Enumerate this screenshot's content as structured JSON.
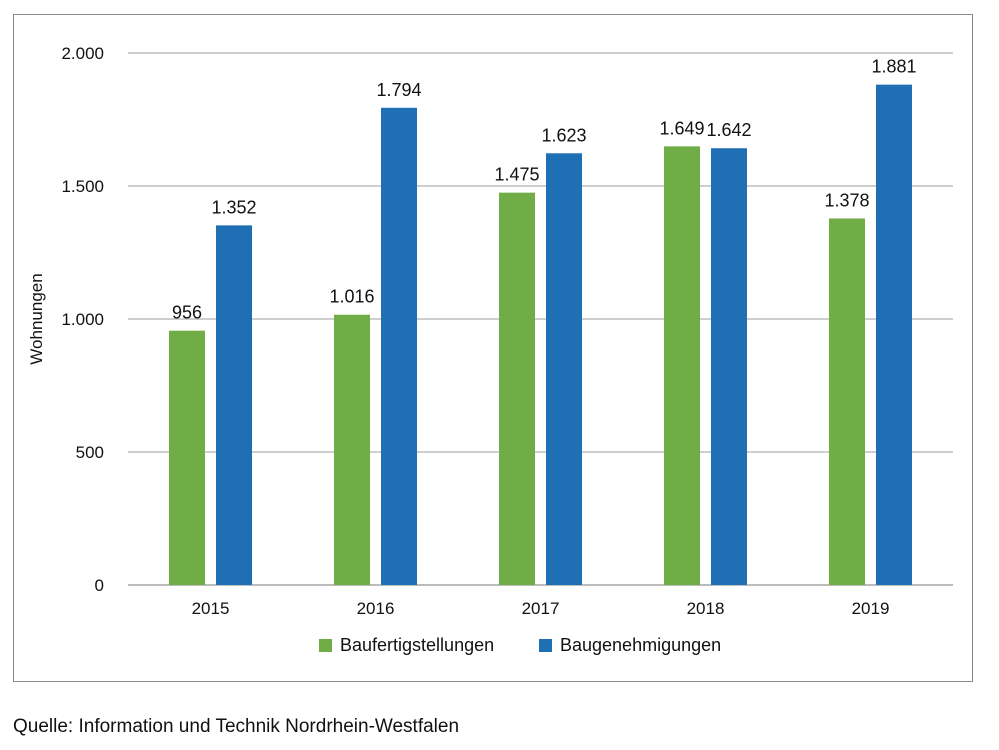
{
  "chart_data": {
    "type": "bar",
    "title": "",
    "xlabel": "",
    "ylabel": "Wohnungen",
    "categories": [
      "2015",
      "2016",
      "2017",
      "2018",
      "2019"
    ],
    "series": [
      {
        "name": "Baufertigstellungen",
        "color": "#70AD47",
        "values": [
          956,
          1016,
          1475,
          1649,
          1378
        ],
        "labels": [
          "956",
          "1.016",
          "1.475",
          "1.649",
          "1.378"
        ]
      },
      {
        "name": "Baugenehmigungen",
        "color": "#1F6FB5",
        "values": [
          1352,
          1794,
          1623,
          1642,
          1881
        ],
        "labels": [
          "1.352",
          "1.794",
          "1.623",
          "1.642",
          "1.881"
        ]
      }
    ],
    "ylim": [
      0,
      2000
    ],
    "yticks": [
      0,
      500,
      1000,
      1500,
      2000
    ],
    "ytick_labels": [
      "0",
      "500",
      "1.000",
      "1.500",
      "2.000"
    ],
    "grid": true,
    "legend": "bottom-center"
  },
  "source": "Quelle: Information und Technik Nordrhein-Westfalen"
}
